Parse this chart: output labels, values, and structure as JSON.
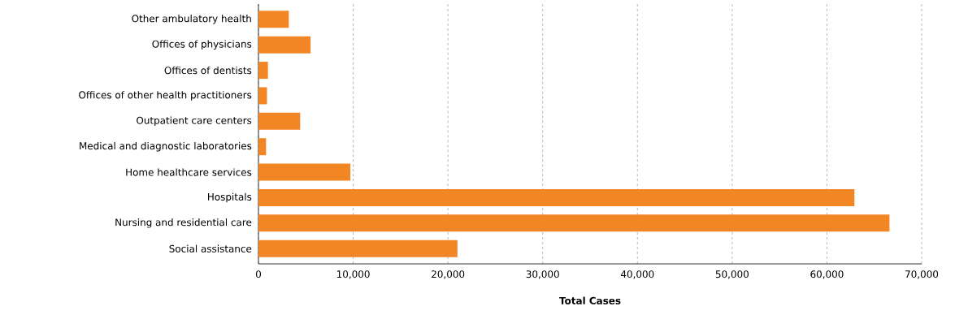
{
  "chart_data": {
    "type": "bar",
    "orientation": "horizontal",
    "categories": [
      "Other ambulatory health",
      "Offices of physicians",
      "Offices of dentists",
      "Offices of other health practitioners",
      "Outpatient care centers",
      "Medical and diagnostic laboratories",
      "Home healthcare services",
      "Hospitals",
      "Nursing and residential care",
      "Social assistance"
    ],
    "values": [
      3200,
      5500,
      1000,
      900,
      4400,
      800,
      9700,
      62900,
      66600,
      21000
    ],
    "color": "#f28524",
    "xlabel": "Total Cases",
    "xlim": [
      0,
      70000
    ],
    "xticks": [
      {
        "value": 0,
        "label": "0"
      },
      {
        "value": 10000,
        "label": "10,000"
      },
      {
        "value": 20000,
        "label": "20,000"
      },
      {
        "value": 30000,
        "label": "30,000"
      },
      {
        "value": 40000,
        "label": "40,000"
      },
      {
        "value": 50000,
        "label": "50,000"
      },
      {
        "value": 60000,
        "label": "60,000"
      },
      {
        "value": 70000,
        "label": "70,000"
      }
    ],
    "grid": "x"
  }
}
